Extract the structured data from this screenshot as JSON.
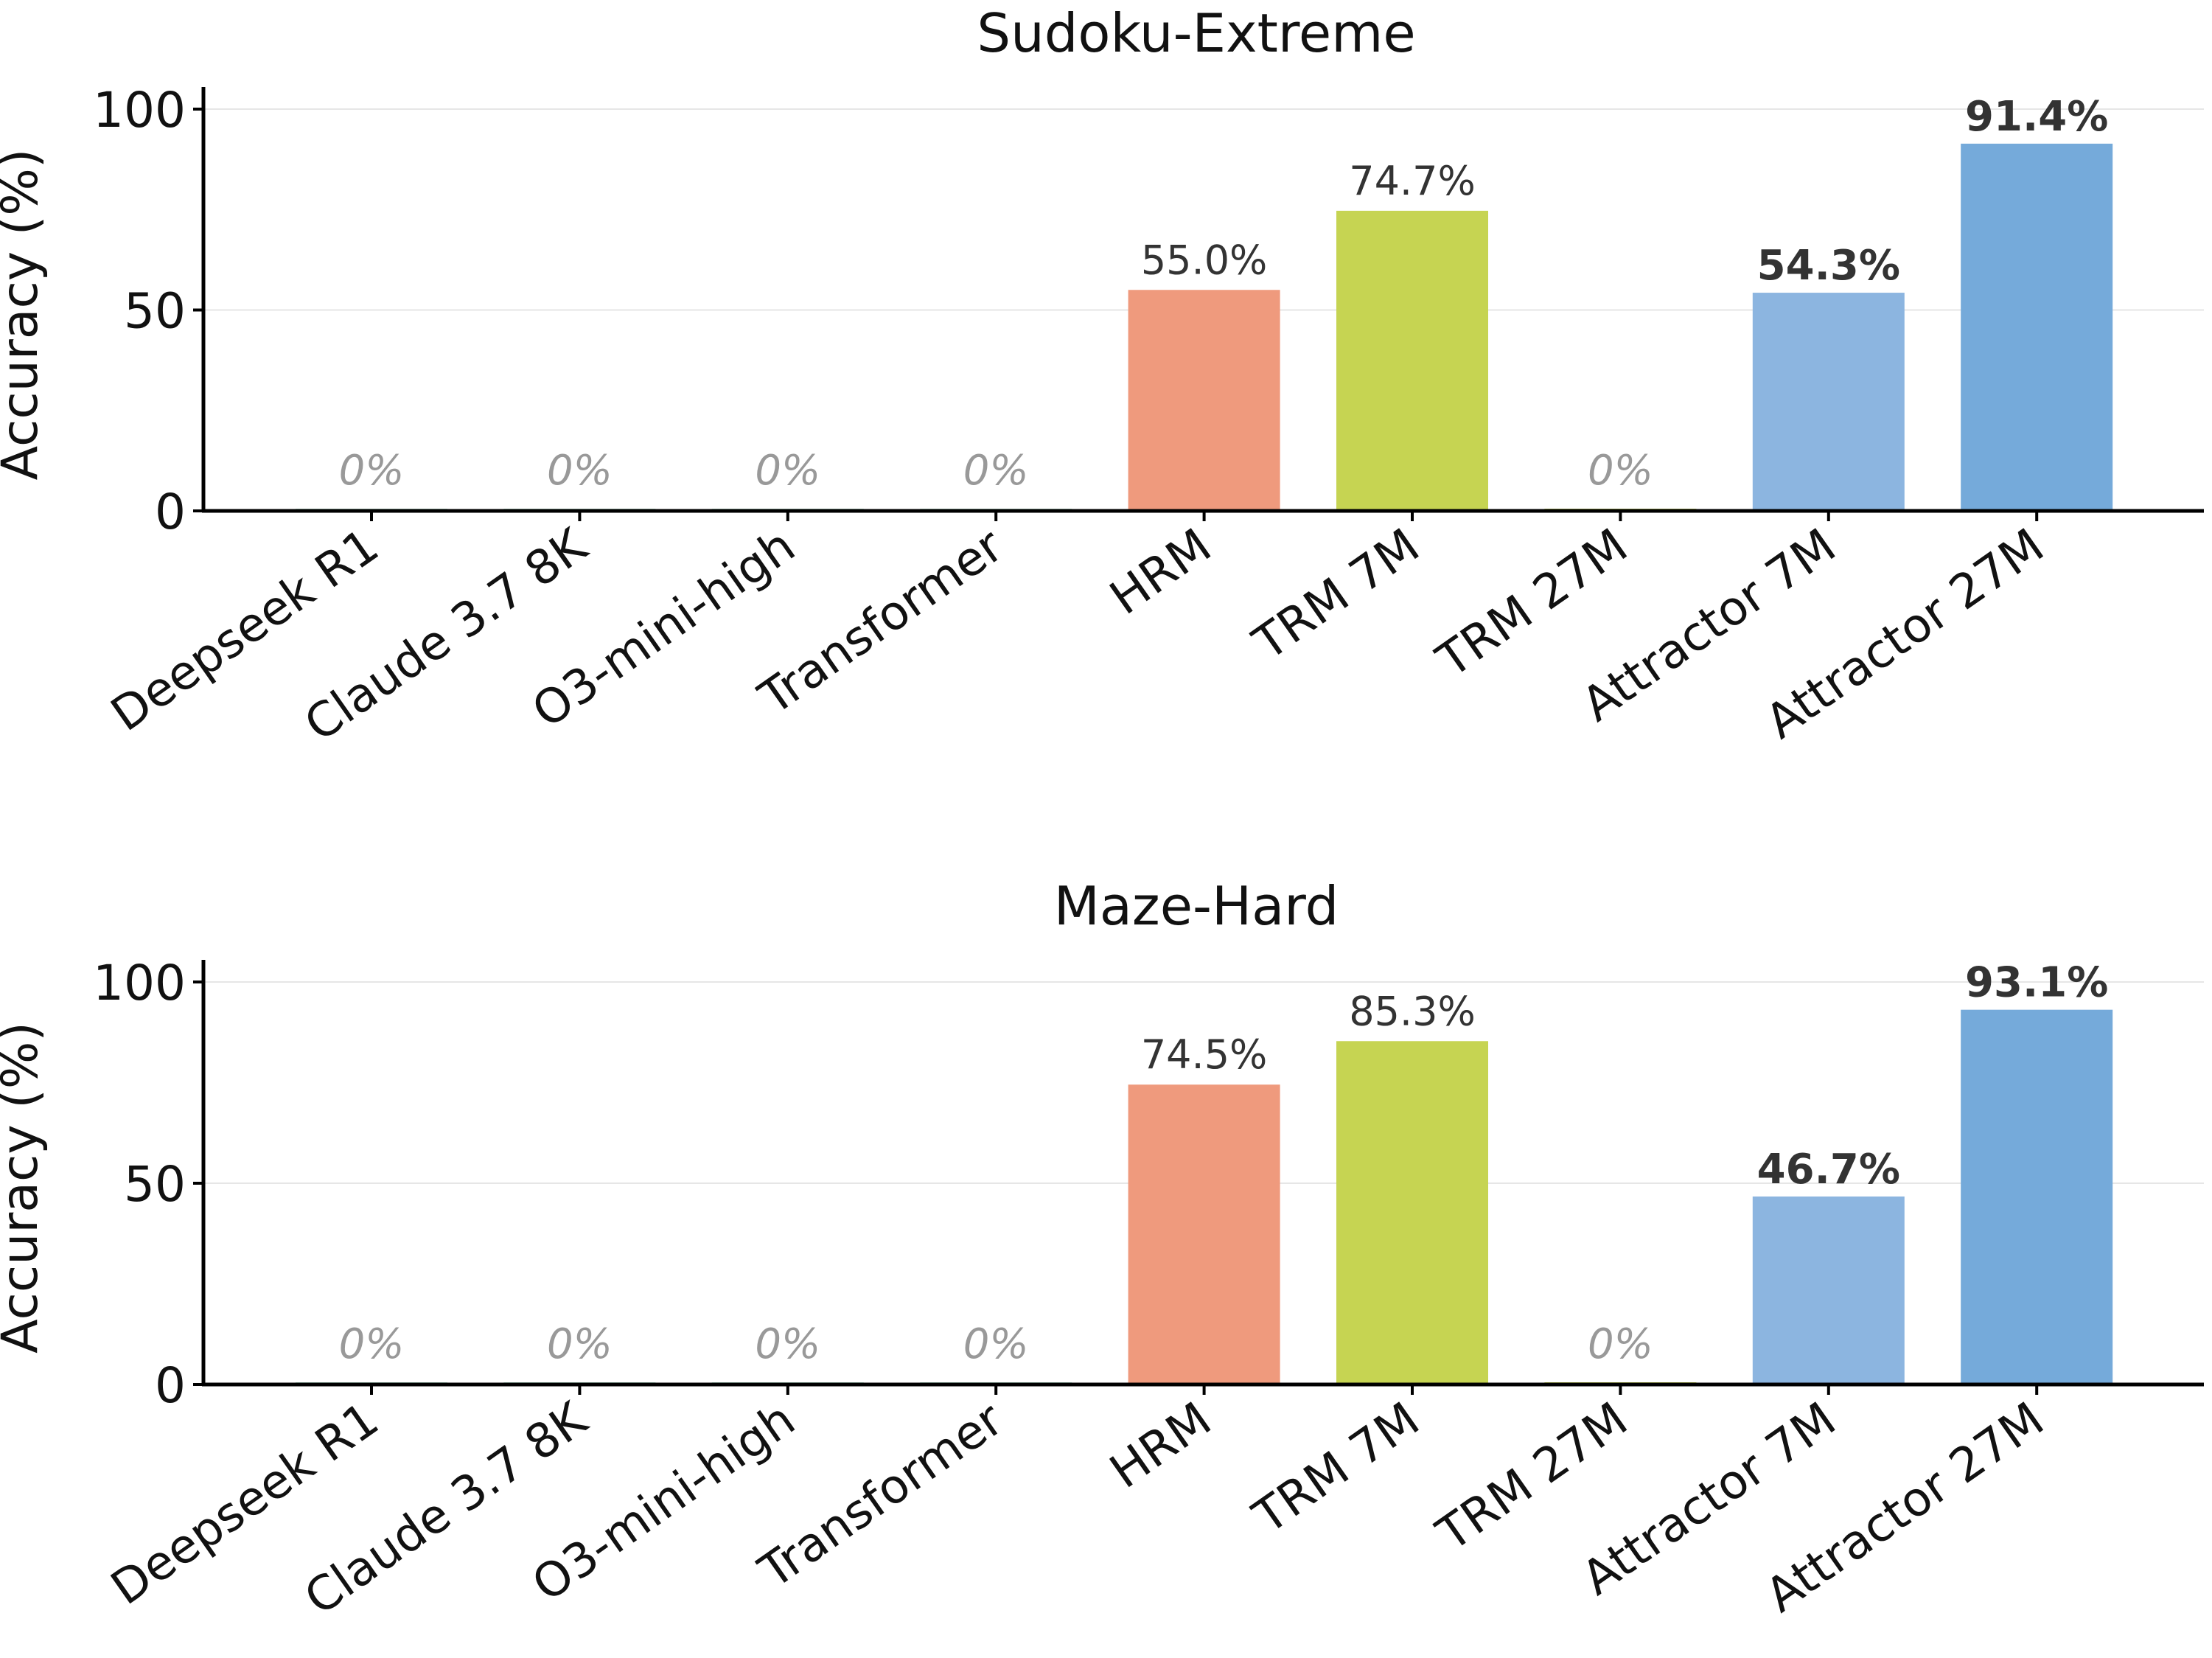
{
  "chart_data": [
    {
      "type": "bar",
      "title": "Sudoku-Extreme",
      "xlabel": "",
      "ylabel": "Accuracy (%)",
      "ylim": [
        0,
        100
      ],
      "yticks": [
        0,
        50,
        100
      ],
      "grid": "horizontal",
      "categories": [
        "Deepseek R1",
        "Claude 3.7 8K",
        "O3-mini-high",
        "Transformer",
        "HRM",
        "TRM 7M",
        "TRM 27M",
        "Attractor 7M",
        "Attractor 27M"
      ],
      "values": [
        0,
        0,
        0,
        0,
        55.0,
        74.7,
        0,
        54.3,
        91.4
      ],
      "labels": [
        "0%",
        "0%",
        "0%",
        "0%",
        "55.0%",
        "74.7%",
        "0%",
        "54.3%",
        "91.4%"
      ],
      "colors": [
        "#b9e3cf",
        "#b9e3cf",
        "#b9e3cf",
        "#b9e3cf",
        "#ef9a7d",
        "#c6d452",
        "#c6d452",
        "#8cb5e0",
        "#75aada"
      ]
    },
    {
      "type": "bar",
      "title": "Maze-Hard",
      "xlabel": "",
      "ylabel": "Accuracy (%)",
      "ylim": [
        0,
        100
      ],
      "yticks": [
        0,
        50,
        100
      ],
      "grid": "horizontal",
      "categories": [
        "Deepseek R1",
        "Claude 3.7 8K",
        "O3-mini-high",
        "Transformer",
        "HRM",
        "TRM 7M",
        "TRM 27M",
        "Attractor 7M",
        "Attractor 27M"
      ],
      "values": [
        0,
        0,
        0,
        0,
        74.5,
        85.3,
        0,
        46.7,
        93.1
      ],
      "labels": [
        "0%",
        "0%",
        "0%",
        "0%",
        "74.5%",
        "85.3%",
        "0%",
        "46.7%",
        "93.1%"
      ],
      "colors": [
        "#b9e3cf",
        "#b9e3cf",
        "#b9e3cf",
        "#b9e3cf",
        "#ef9a7d",
        "#c6d452",
        "#c6d452",
        "#8cb5e0",
        "#75aada"
      ]
    }
  ]
}
